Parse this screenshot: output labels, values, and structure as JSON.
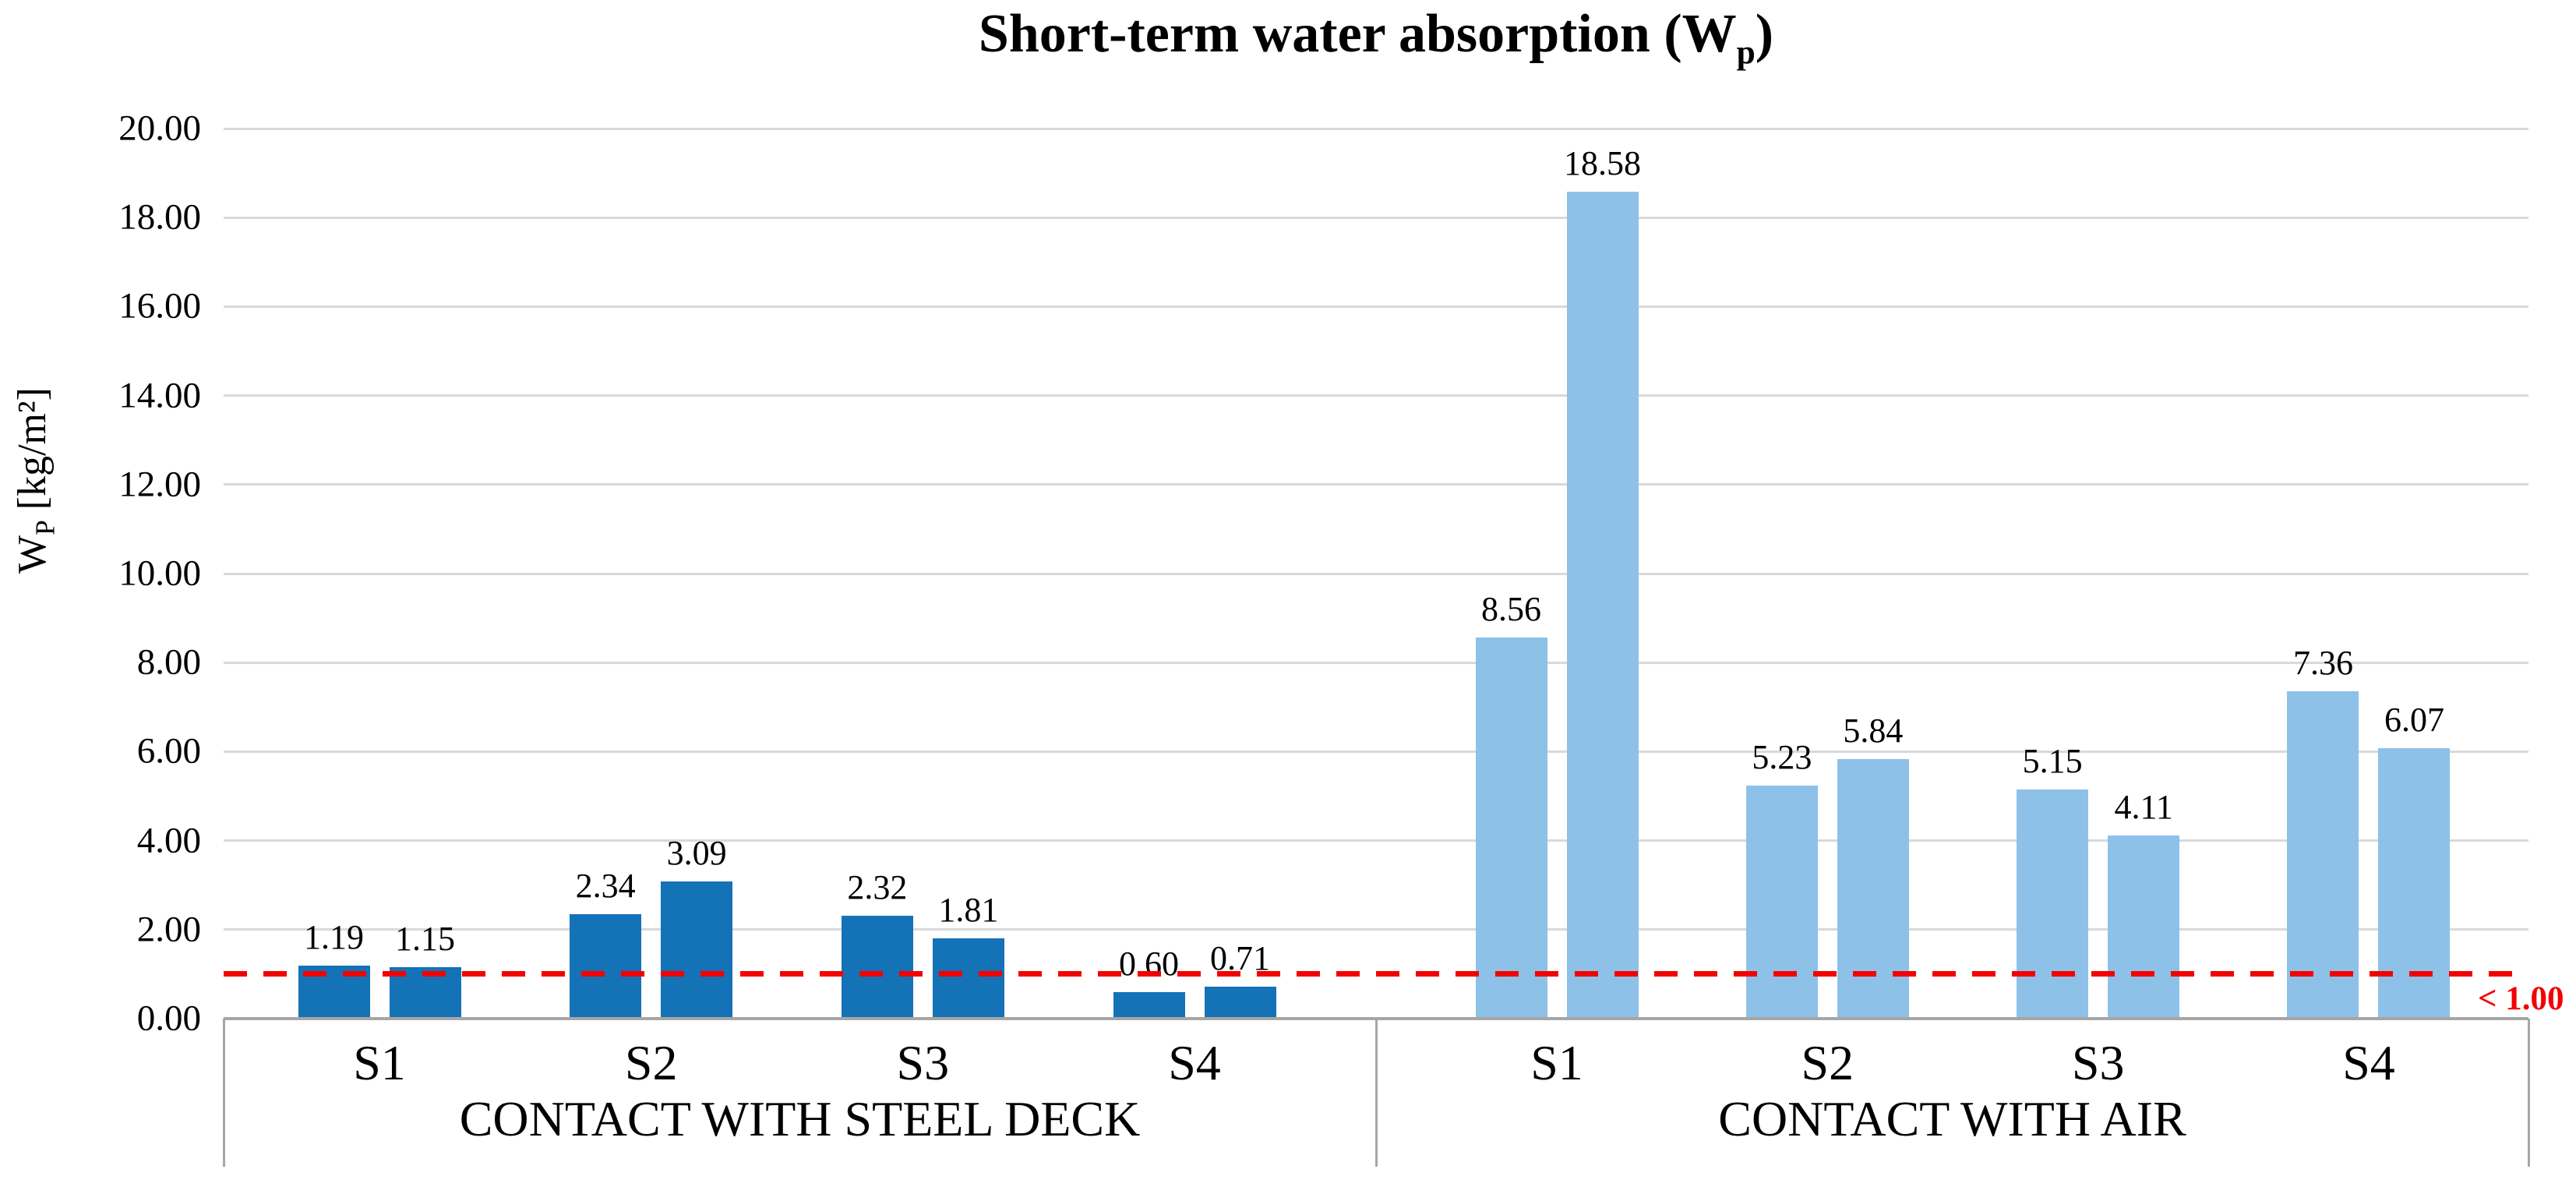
{
  "chart_data": {
    "type": "bar",
    "title": "Short-term water absorption (Wp)",
    "title_parts": {
      "prefix": "Short-term water absorption (W",
      "subscript": "p",
      "suffix": ")"
    },
    "ylabel": "WP [kg/m²]",
    "ylabel_parts": {
      "prefix": "W",
      "subscript": "P",
      "suffix": " [kg/m²]"
    },
    "ylim": [
      0,
      20
    ],
    "ytick_step": 2,
    "ytick_labels": [
      "0.00",
      "2.00",
      "4.00",
      "6.00",
      "8.00",
      "10.00",
      "12.00",
      "14.00",
      "16.00",
      "18.00",
      "20.00"
    ],
    "grid": true,
    "legend": false,
    "bars_per_category": 2,
    "groups": [
      {
        "label": "CONTACT WITH STEEL DECK",
        "bar_color": "#1472b7",
        "categories": [
          {
            "label": "S1",
            "values": [
              1.19,
              1.15
            ],
            "value_labels": [
              "1.19",
              "1.15"
            ]
          },
          {
            "label": "S2",
            "values": [
              2.34,
              3.09
            ],
            "value_labels": [
              "2.34",
              "3.09"
            ]
          },
          {
            "label": "S3",
            "values": [
              2.32,
              1.81
            ],
            "value_labels": [
              "2.32",
              "1.81"
            ]
          },
          {
            "label": "S4",
            "values": [
              0.6,
              0.71
            ],
            "value_labels": [
              "0.60",
              "0.71"
            ]
          }
        ]
      },
      {
        "label": "CONTACT WITH AIR",
        "bar_color": "#8dc1e8",
        "categories": [
          {
            "label": "S1",
            "values": [
              8.56,
              18.58
            ],
            "value_labels": [
              "8.56",
              "18.58"
            ]
          },
          {
            "label": "S2",
            "values": [
              5.23,
              5.84
            ],
            "value_labels": [
              "5.23",
              "5.84"
            ]
          },
          {
            "label": "S3",
            "values": [
              5.15,
              4.11
            ],
            "value_labels": [
              "5.15",
              "4.11"
            ]
          },
          {
            "label": "S4",
            "values": [
              7.36,
              6.07
            ],
            "value_labels": [
              "7.36",
              "6.07"
            ]
          }
        ]
      }
    ],
    "reference_line": {
      "value": 1.0,
      "label": "< 1.00",
      "color": "#f40000",
      "style": "dashed"
    }
  },
  "colors": {
    "bar_dark_blue": "#1472b7",
    "bar_light_blue": "#8dc1e8",
    "reference_red": "#f40000",
    "gridline": "#d9d9d9",
    "axis_line": "#a6a6a6",
    "text": "#000000"
  }
}
